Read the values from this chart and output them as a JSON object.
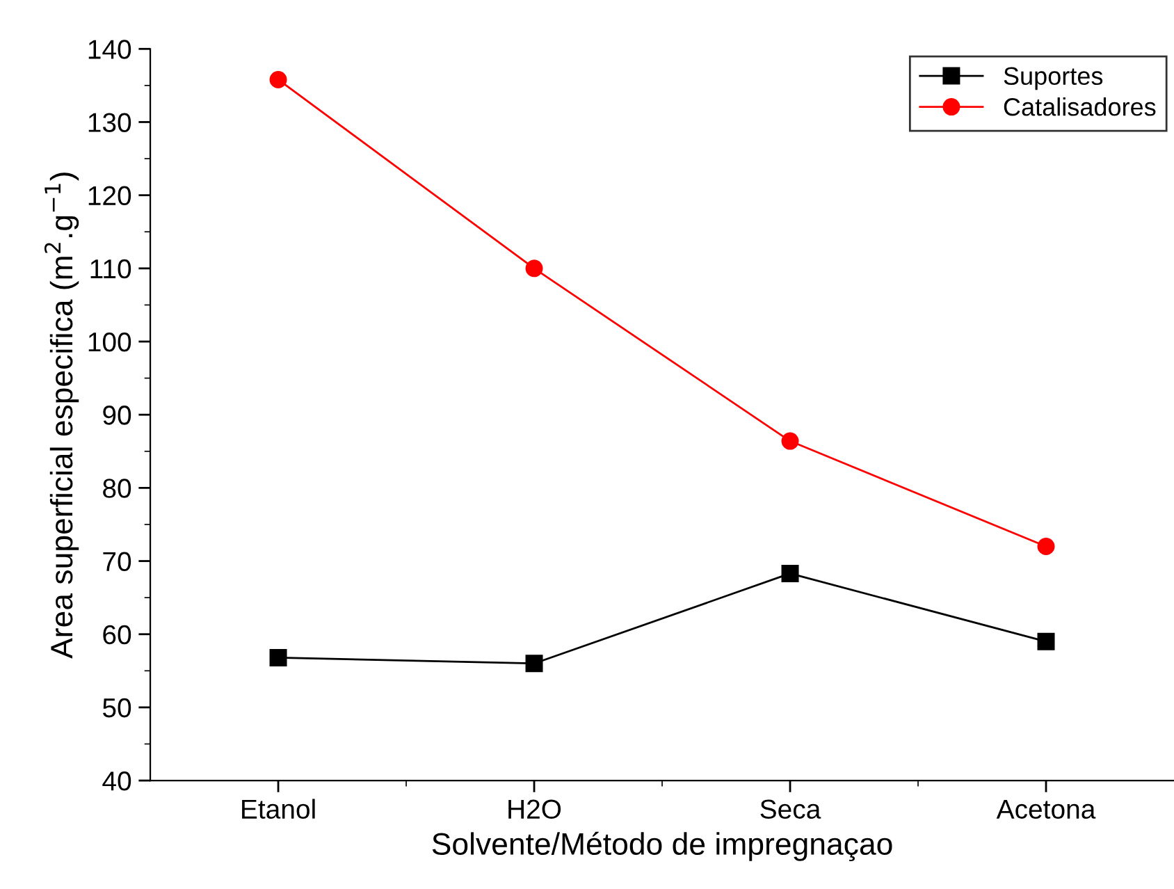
{
  "chart_data": {
    "type": "line",
    "xlabel": "Solvente/Método de impregnaçao",
    "ylabel": "Area superficial especifica (m$^{2}$.g$^{−1}$)",
    "categories": [
      "Etanol",
      "H2O",
      "Seca",
      "Acetona"
    ],
    "series": [
      {
        "name": "Suportes",
        "color": "#000000",
        "marker": "square",
        "values": [
          56.8,
          56.0,
          68.3,
          59.0
        ]
      },
      {
        "name": "Catalisadores",
        "color": "#ff0000",
        "marker": "circle",
        "values": [
          135.8,
          110.0,
          86.4,
          72.0
        ]
      }
    ],
    "ylim": [
      40,
      140
    ],
    "yticks": [
      40,
      50,
      60,
      70,
      80,
      90,
      100,
      110,
      120,
      130,
      140
    ],
    "grid": false,
    "legend": "top right",
    "line_style": "solid"
  }
}
